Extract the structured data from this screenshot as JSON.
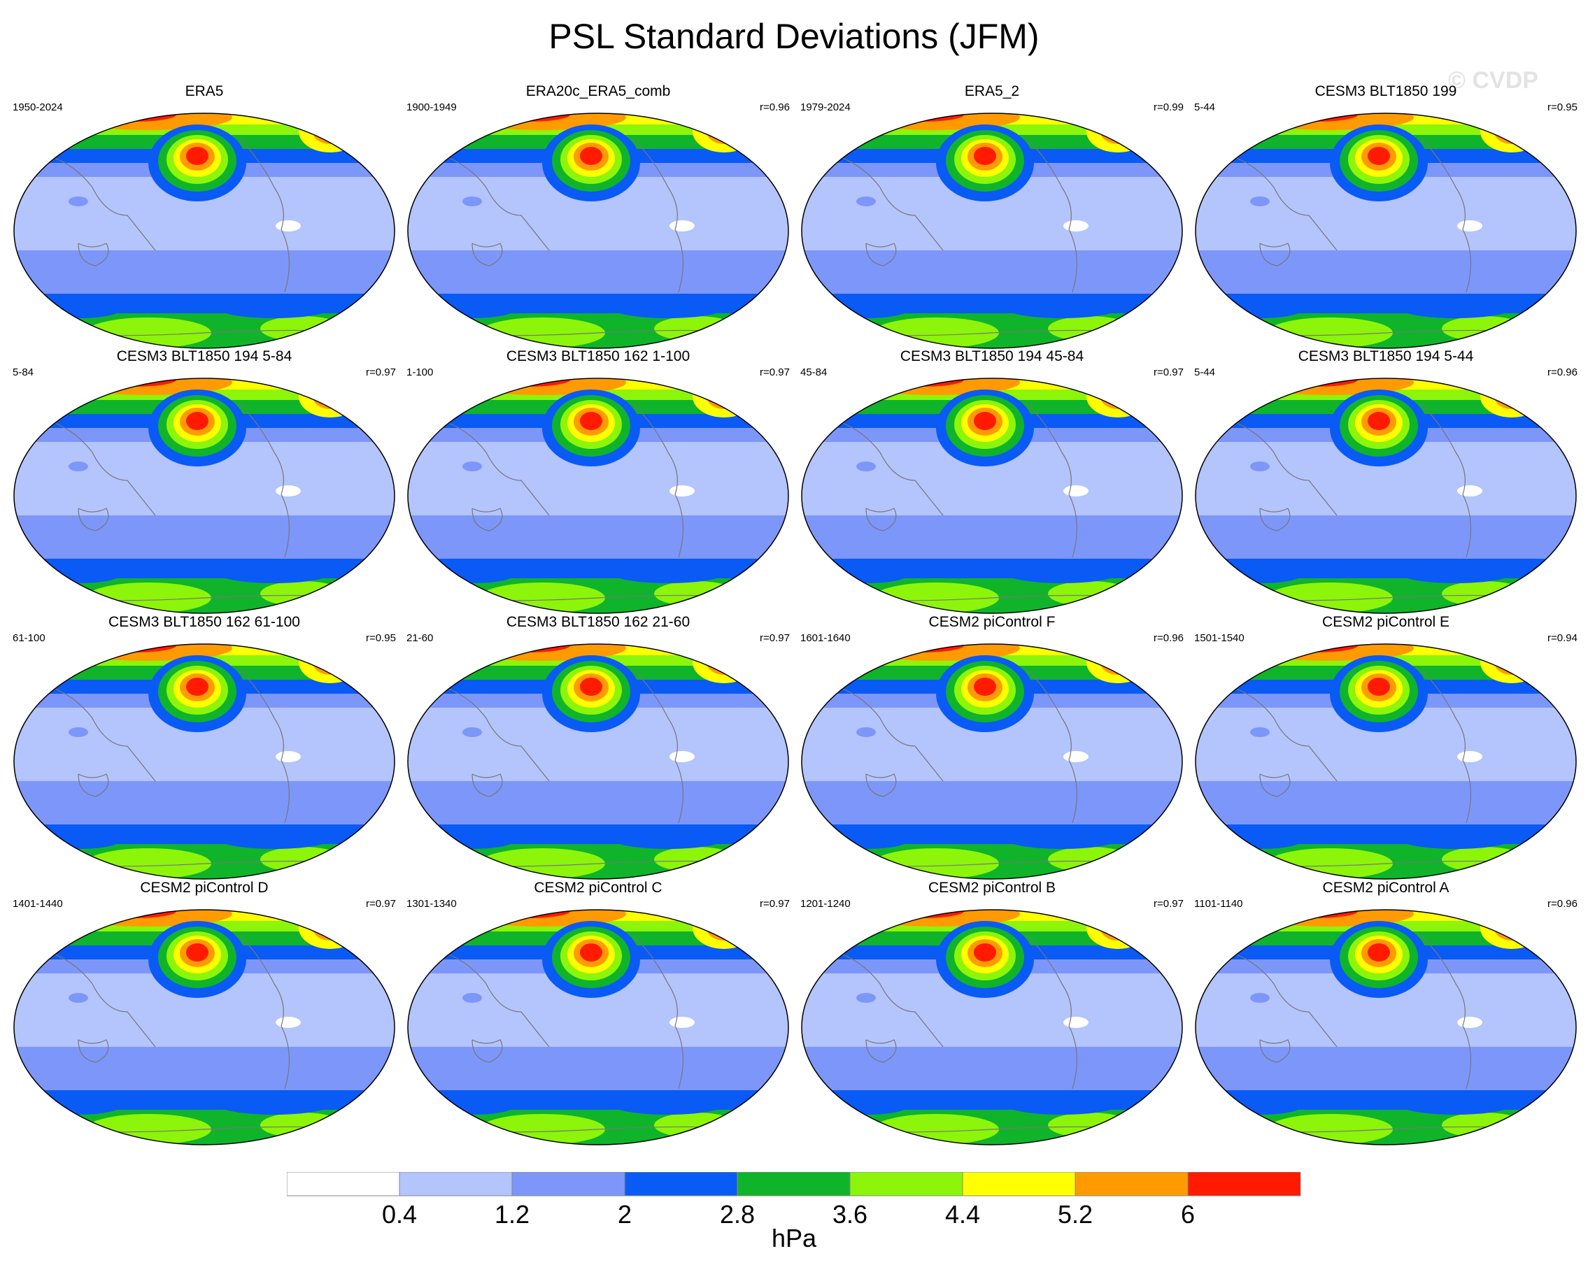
{
  "title": "PSL Standard Deviations (JFM)",
  "watermark": "© CVDP",
  "units": "hPa",
  "colorbar": {
    "colors": [
      "#ffffff",
      "#b4c4fc",
      "#7d96f9",
      "#0a5af5",
      "#0fb42a",
      "#8cf50a",
      "#ffff00",
      "#ff9b00",
      "#ff1a00"
    ],
    "labels": [
      "0.4",
      "1.2",
      "2",
      "2.8",
      "3.6",
      "4.4",
      "5.2",
      "6"
    ]
  },
  "panels": [
    {
      "title": "ERA5",
      "years": "1950-2024",
      "r": ""
    },
    {
      "title": "ERA20c_ERA5_comb",
      "years": "1900-1949",
      "r": "r=0.96"
    },
    {
      "title": "ERA5_2",
      "years": "1979-2024",
      "r": "r=0.99"
    },
    {
      "title": "CESM3 BLT1850 199",
      "years": "5-44",
      "r": "r=0.95"
    },
    {
      "title": "CESM3 BLT1850 194 5-84",
      "years": "5-84",
      "r": "r=0.97"
    },
    {
      "title": "CESM3 BLT1850 162 1-100",
      "years": "1-100",
      "r": "r=0.97"
    },
    {
      "title": "CESM3 BLT1850 194 45-84",
      "years": "45-84",
      "r": "r=0.97"
    },
    {
      "title": "CESM3 BLT1850 194 5-44",
      "years": "5-44",
      "r": "r=0.96"
    },
    {
      "title": "CESM3 BLT1850 162 61-100",
      "years": "61-100",
      "r": "r=0.95"
    },
    {
      "title": "CESM3 BLT1850 162 21-60",
      "years": "21-60",
      "r": "r=0.97"
    },
    {
      "title": "CESM2 piControl F",
      "years": "1601-1640",
      "r": "r=0.96"
    },
    {
      "title": "CESM2 piControl E",
      "years": "1501-1540",
      "r": "r=0.94"
    },
    {
      "title": "CESM2 piControl D",
      "years": "1401-1440",
      "r": "r=0.97"
    },
    {
      "title": "CESM2 piControl C",
      "years": "1301-1340",
      "r": "r=0.97"
    },
    {
      "title": "CESM2 piControl B",
      "years": "1201-1240",
      "r": "r=0.97"
    },
    {
      "title": "CESM2 piControl A",
      "years": "1101-1140",
      "r": "r=0.96"
    }
  ]
}
